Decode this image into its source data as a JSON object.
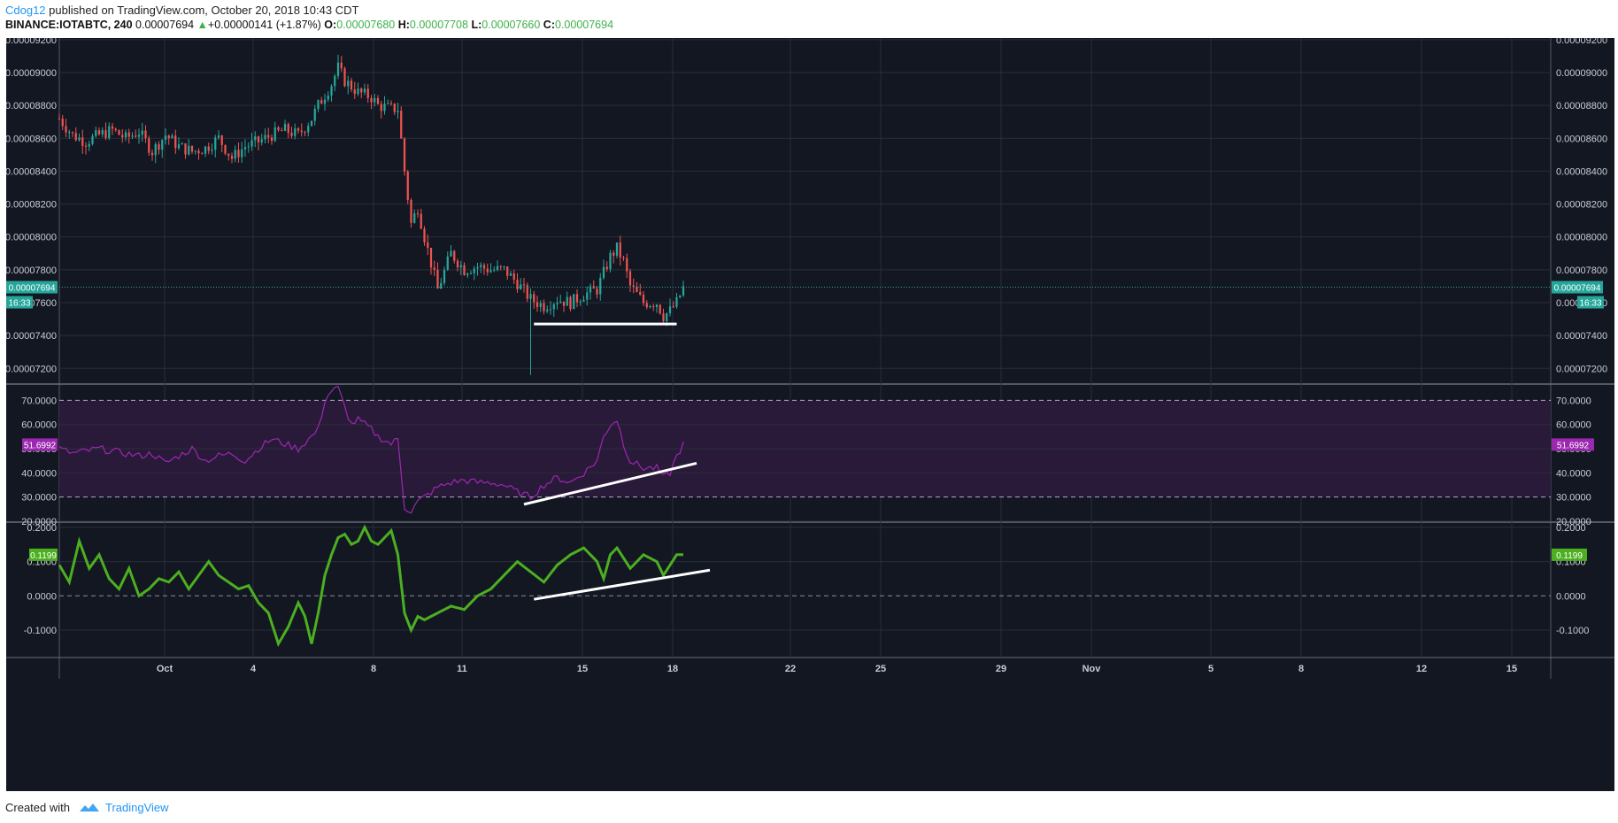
{
  "header": {
    "author": "Cdog12",
    "published": "published on TradingView.com, October 20, 2018 10:43 CDT",
    "symbol": "BINANCE:IOTABTC, 240",
    "last": "0.00007694",
    "change": "+0.00000141 (+1.87%)",
    "o_label": "O:",
    "o": "0.00007680",
    "h_label": "H:",
    "h": "0.00007708",
    "l_label": "L:",
    "l": "0.00007660",
    "c_label": "C:",
    "c": "0.00007694"
  },
  "footer": {
    "created": "Created with",
    "brand": "TradingView"
  },
  "colors": {
    "background": "#131722",
    "up": "#26a69a",
    "down": "#ef5350",
    "rsi": "#9c27b0",
    "rsi_band": "#2a1a3a",
    "osc": "#4caf20",
    "trendline": "#ffffff",
    "price_badge": "#26a69a",
    "rsi_badge": "#9c27b0",
    "osc_badge": "#4caf20"
  },
  "chart_data": [
    {
      "type": "candlestick",
      "panel": "price",
      "symbol": "BINANCE:IOTABTC",
      "interval": "240",
      "ylim": [
        7.11e-05,
        9.21e-05
      ],
      "y_ticks": [
        "0.00009200",
        "0.00009000",
        "0.00008800",
        "0.00008600",
        "0.00008400",
        "0.00008200",
        "0.00008000",
        "0.00007800",
        "0.00007600",
        "0.00007400",
        "0.00007200"
      ],
      "last_price_label": "0.00007694",
      "countdown": "16:33",
      "x_ticks": [
        "Oct",
        "4",
        "8",
        "11",
        "15",
        "18",
        "22",
        "25",
        "29",
        "Nov",
        "5",
        "8",
        "12",
        "15"
      ],
      "close_path": [
        [
          0,
          8.72e-05
        ],
        [
          4,
          8.62e-05
        ],
        [
          8,
          8.58e-05
        ],
        [
          12,
          8.62e-05
        ],
        [
          16,
          8.65e-05
        ],
        [
          20,
          8.6e-05
        ],
        [
          24,
          8.64e-05
        ],
        [
          28,
          8.52e-05
        ],
        [
          32,
          8.62e-05
        ],
        [
          36,
          8.55e-05
        ],
        [
          40,
          8.52e-05
        ],
        [
          44,
          8.54e-05
        ],
        [
          48,
          8.6e-05
        ],
        [
          52,
          8.48e-05
        ],
        [
          56,
          8.55e-05
        ],
        [
          60,
          8.58e-05
        ],
        [
          64,
          8.62e-05
        ],
        [
          68,
          8.65e-05
        ],
        [
          72,
          8.62e-05
        ],
        [
          76,
          8.72e-05
        ],
        [
          78,
          8.8e-05
        ],
        [
          82,
          8.93e-05
        ],
        [
          84,
          9.03e-05
        ],
        [
          86,
          8.95e-05
        ],
        [
          90,
          8.88e-05
        ],
        [
          94,
          8.85e-05
        ],
        [
          96,
          8.8e-05
        ],
        [
          100,
          8.78e-05
        ],
        [
          102,
          8.78e-05
        ],
        [
          104,
          8.4e-05
        ],
        [
          106,
          8.08e-05
        ],
        [
          108,
          8.18e-05
        ],
        [
          110,
          8e-05
        ],
        [
          114,
          7.68e-05
        ],
        [
          118,
          7.9e-05
        ],
        [
          122,
          7.8e-05
        ],
        [
          126,
          7.82e-05
        ],
        [
          130,
          7.8e-05
        ],
        [
          134,
          7.8e-05
        ],
        [
          138,
          7.72e-05
        ],
        [
          142,
          7.62e-05
        ],
        [
          146,
          7.58e-05
        ],
        [
          150,
          7.62e-05
        ],
        [
          154,
          7.6e-05
        ],
        [
          158,
          7.65e-05
        ],
        [
          162,
          7.68e-05
        ],
        [
          164,
          7.78e-05
        ],
        [
          166,
          7.88e-05
        ],
        [
          168,
          7.93e-05
        ],
        [
          170,
          7.85e-05
        ],
        [
          172,
          7.7e-05
        ],
        [
          176,
          7.6e-05
        ],
        [
          180,
          7.6e-05
        ],
        [
          182,
          7.52e-05
        ],
        [
          184,
          7.55e-05
        ],
        [
          186,
          7.6e-05
        ],
        [
          188,
          7.69e-05
        ]
      ],
      "trendline": {
        "from": [
          7.47e-05
        ],
        "to": [
          7.47e-05
        ],
        "label": ""
      }
    },
    {
      "type": "line",
      "panel": "rsi",
      "ylim": [
        20,
        76
      ],
      "y_ticks": [
        "70.0000",
        "60.0000",
        "50.0000",
        "40.0000",
        "30.0000",
        "20.0000"
      ],
      "band": [
        30,
        70
      ],
      "last_value_label": "51.6992",
      "values_path": [
        [
          0,
          50
        ],
        [
          4,
          48
        ],
        [
          8,
          49
        ],
        [
          12,
          50
        ],
        [
          16,
          49
        ],
        [
          20,
          48
        ],
        [
          24,
          47
        ],
        [
          28,
          48
        ],
        [
          32,
          44
        ],
        [
          36,
          47
        ],
        [
          40,
          50
        ],
        [
          44,
          45
        ],
        [
          48,
          47
        ],
        [
          52,
          48
        ],
        [
          56,
          45
        ],
        [
          60,
          50
        ],
        [
          64,
          54
        ],
        [
          68,
          52
        ],
        [
          72,
          50
        ],
        [
          76,
          55
        ],
        [
          78,
          58
        ],
        [
          80,
          70
        ],
        [
          82,
          74
        ],
        [
          84,
          75
        ],
        [
          86,
          67
        ],
        [
          88,
          60
        ],
        [
          90,
          62
        ],
        [
          94,
          58
        ],
        [
          96,
          55
        ],
        [
          100,
          52
        ],
        [
          102,
          54
        ],
        [
          104,
          26
        ],
        [
          106,
          24
        ],
        [
          108,
          28
        ],
        [
          110,
          30
        ],
        [
          114,
          34
        ],
        [
          118,
          36
        ],
        [
          122,
          37
        ],
        [
          126,
          36
        ],
        [
          130,
          36
        ],
        [
          134,
          35
        ],
        [
          138,
          32
        ],
        [
          142,
          30
        ],
        [
          146,
          35
        ],
        [
          150,
          38
        ],
        [
          154,
          36
        ],
        [
          158,
          40
        ],
        [
          162,
          45
        ],
        [
          164,
          55
        ],
        [
          166,
          60
        ],
        [
          168,
          62
        ],
        [
          170,
          52
        ],
        [
          172,
          45
        ],
        [
          176,
          42
        ],
        [
          180,
          42
        ],
        [
          182,
          38
        ],
        [
          184,
          40
        ],
        [
          186,
          47
        ],
        [
          188,
          51.7
        ]
      ],
      "trendline": true
    },
    {
      "type": "line",
      "panel": "oscillator",
      "ylim": [
        -0.18,
        0.21
      ],
      "y_ticks": [
        "0.2000",
        "0.1000",
        "0.0000",
        "-0.1000"
      ],
      "last_value_label": "0.1199",
      "values_path": [
        [
          0,
          0.09
        ],
        [
          3,
          0.04
        ],
        [
          6,
          0.16
        ],
        [
          9,
          0.08
        ],
        [
          12,
          0.12
        ],
        [
          15,
          0.05
        ],
        [
          18,
          0.02
        ],
        [
          21,
          0.08
        ],
        [
          24,
          0.0
        ],
        [
          27,
          0.02
        ],
        [
          30,
          0.05
        ],
        [
          33,
          0.04
        ],
        [
          36,
          0.07
        ],
        [
          39,
          0.02
        ],
        [
          42,
          0.06
        ],
        [
          45,
          0.1
        ],
        [
          48,
          0.06
        ],
        [
          51,
          0.04
        ],
        [
          54,
          0.02
        ],
        [
          57,
          0.03
        ],
        [
          60,
          -0.02
        ],
        [
          63,
          -0.05
        ],
        [
          66,
          -0.14
        ],
        [
          69,
          -0.09
        ],
        [
          72,
          -0.02
        ],
        [
          74,
          -0.06
        ],
        [
          76,
          -0.14
        ],
        [
          78,
          -0.05
        ],
        [
          80,
          0.06
        ],
        [
          82,
          0.12
        ],
        [
          84,
          0.17
        ],
        [
          86,
          0.18
        ],
        [
          88,
          0.15
        ],
        [
          90,
          0.16
        ],
        [
          92,
          0.2
        ],
        [
          94,
          0.16
        ],
        [
          96,
          0.15
        ],
        [
          98,
          0.17
        ],
        [
          100,
          0.19
        ],
        [
          102,
          0.12
        ],
        [
          104,
          -0.05
        ],
        [
          106,
          -0.1
        ],
        [
          108,
          -0.06
        ],
        [
          110,
          -0.07
        ],
        [
          114,
          -0.05
        ],
        [
          118,
          -0.03
        ],
        [
          122,
          -0.04
        ],
        [
          126,
          0.0
        ],
        [
          130,
          0.02
        ],
        [
          134,
          0.06
        ],
        [
          138,
          0.1
        ],
        [
          142,
          0.07
        ],
        [
          146,
          0.04
        ],
        [
          150,
          0.09
        ],
        [
          154,
          0.12
        ],
        [
          158,
          0.14
        ],
        [
          162,
          0.1
        ],
        [
          164,
          0.05
        ],
        [
          166,
          0.12
        ],
        [
          168,
          0.14
        ],
        [
          170,
          0.11
        ],
        [
          172,
          0.08
        ],
        [
          176,
          0.12
        ],
        [
          180,
          0.1
        ],
        [
          182,
          0.06
        ],
        [
          184,
          0.09
        ],
        [
          186,
          0.12
        ],
        [
          188,
          0.12
        ]
      ],
      "trendline": true
    }
  ]
}
